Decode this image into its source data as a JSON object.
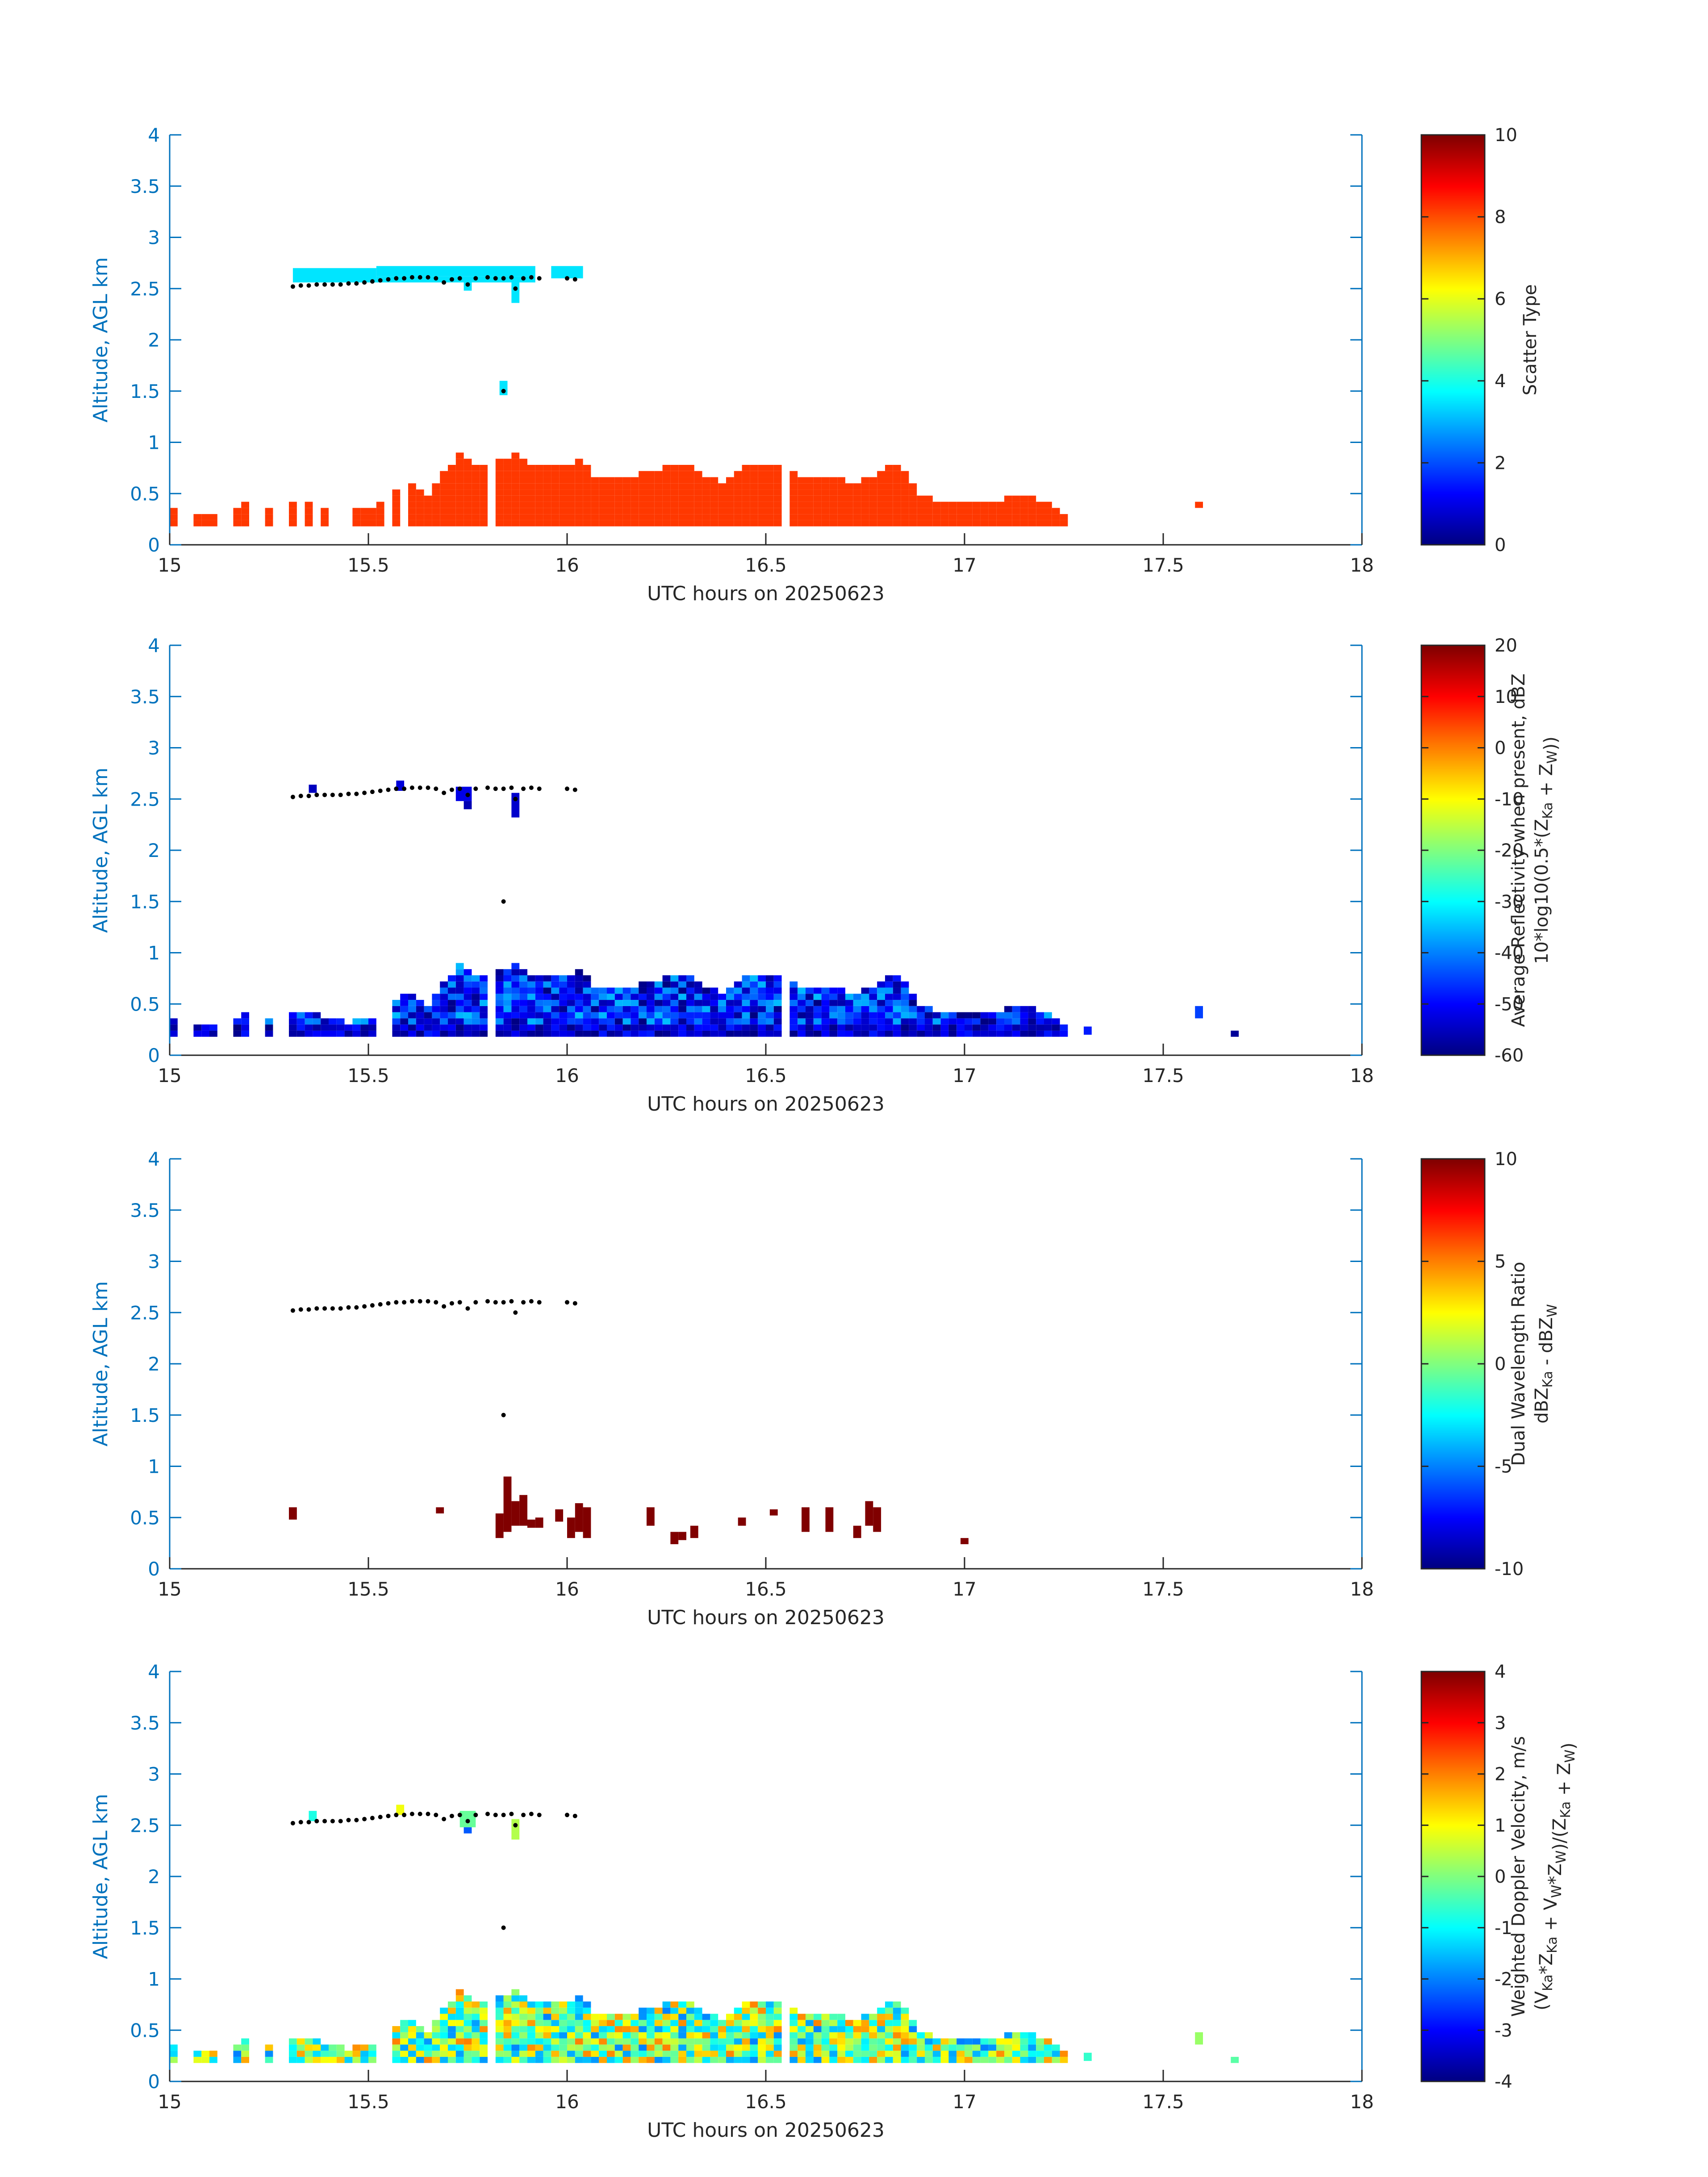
{
  "colors": {
    "axis": "#0072BD",
    "frame": "#262626",
    "text": "#262626",
    "cloud_top_dot": "#000000",
    "background": "#ffffff"
  },
  "colormap": "jet",
  "chart_data": [
    {
      "type": "heatmap",
      "title": "",
      "xlabel": "UTC hours on 20250623",
      "ylabel": "Altitude, AGL km",
      "xlim": [
        15,
        18
      ],
      "ylim": [
        0,
        4
      ],
      "xticks": [
        "15",
        "15.5",
        "16",
        "16.5",
        "17",
        "17.5",
        "18"
      ],
      "yticks": [
        "0",
        "0.5",
        "1",
        "1.5",
        "2",
        "2.5",
        "3",
        "3.5",
        "4"
      ],
      "colorbar": {
        "label_lines": [
          "Scatter Type"
        ],
        "clim": [
          0,
          10
        ],
        "ticks": [
          "0",
          "2",
          "4",
          "6",
          "8",
          "10"
        ]
      },
      "cloud_top_points": [
        [
          15.31,
          2.52
        ],
        [
          15.33,
          2.53
        ],
        [
          15.35,
          2.53
        ],
        [
          15.37,
          2.54
        ],
        [
          15.39,
          2.54
        ],
        [
          15.41,
          2.54
        ],
        [
          15.43,
          2.54
        ],
        [
          15.45,
          2.55
        ],
        [
          15.47,
          2.55
        ],
        [
          15.49,
          2.56
        ],
        [
          15.51,
          2.57
        ],
        [
          15.53,
          2.58
        ],
        [
          15.55,
          2.59
        ],
        [
          15.57,
          2.6
        ],
        [
          15.59,
          2.6
        ],
        [
          15.61,
          2.61
        ],
        [
          15.63,
          2.61
        ],
        [
          15.65,
          2.61
        ],
        [
          15.67,
          2.6
        ],
        [
          15.69,
          2.56
        ],
        [
          15.71,
          2.59
        ],
        [
          15.73,
          2.6
        ],
        [
          15.75,
          2.54
        ],
        [
          15.77,
          2.6
        ],
        [
          15.8,
          2.61
        ],
        [
          15.82,
          2.6
        ],
        [
          15.84,
          2.6
        ],
        [
          15.86,
          2.61
        ],
        [
          15.87,
          2.5
        ],
        [
          15.89,
          2.6
        ],
        [
          15.91,
          2.61
        ],
        [
          15.93,
          2.6
        ],
        [
          16,
          2.6
        ],
        [
          16.02,
          2.59
        ],
        [
          15.84,
          1.5
        ]
      ],
      "high_cloud_cells": [
        {
          "x0": 15.31,
          "x1": 15.52,
          "y0": 2.56,
          "y1": 2.7,
          "value": 3.5
        },
        {
          "x0": 15.52,
          "x1": 15.92,
          "y0": 2.62,
          "y1": 2.72,
          "value": 3.5
        },
        {
          "x0": 15.52,
          "x1": 15.92,
          "y0": 2.56,
          "y1": 2.62,
          "value": 3.5
        },
        {
          "x0": 15.74,
          "x1": 15.76,
          "y0": 2.48,
          "y1": 2.56,
          "value": 3.5
        },
        {
          "x0": 15.86,
          "x1": 15.88,
          "y0": 2.36,
          "y1": 2.56,
          "value": 3.5
        },
        {
          "x0": 15.96,
          "x1": 16.04,
          "y0": 2.6,
          "y1": 2.72,
          "value": 3.5
        },
        {
          "x0": 15.83,
          "x1": 15.85,
          "y0": 1.46,
          "y1": 1.6,
          "value": 3.5
        }
      ],
      "low_cloud_profile": {
        "value": 8.2,
        "sparse_until": 15.6
      },
      "extra_cells": [
        {
          "x0": 17.58,
          "x1": 17.6,
          "y0": 0.36,
          "y1": 0.42,
          "value": 8.2
        }
      ]
    },
    {
      "type": "heatmap",
      "title": "",
      "xlabel": "UTC hours on 20250623",
      "ylabel": "Altitude, AGL km",
      "xlim": [
        15,
        18
      ],
      "ylim": [
        0,
        4
      ],
      "xticks": [
        "15",
        "15.5",
        "16",
        "16.5",
        "17",
        "17.5",
        "18"
      ],
      "yticks": [
        "0",
        "0.5",
        "1",
        "1.5",
        "2",
        "2.5",
        "3",
        "3.5",
        "4"
      ],
      "colorbar": {
        "label_lines": [
          "Average Reflectivity when present, dBZ",
          "10*log10(0.5*(Z_Ka + Z_W))"
        ],
        "clim": [
          -60,
          20
        ],
        "ticks": [
          "-60",
          "-50",
          "-40",
          "-30",
          "-20",
          "-10",
          "0",
          "10",
          "20"
        ]
      },
      "cloud_top_points": [
        [
          15.31,
          2.52
        ],
        [
          15.33,
          2.53
        ],
        [
          15.35,
          2.53
        ],
        [
          15.37,
          2.54
        ],
        [
          15.39,
          2.54
        ],
        [
          15.41,
          2.54
        ],
        [
          15.43,
          2.54
        ],
        [
          15.45,
          2.55
        ],
        [
          15.47,
          2.55
        ],
        [
          15.49,
          2.56
        ],
        [
          15.51,
          2.57
        ],
        [
          15.53,
          2.58
        ],
        [
          15.55,
          2.59
        ],
        [
          15.57,
          2.6
        ],
        [
          15.59,
          2.6
        ],
        [
          15.61,
          2.61
        ],
        [
          15.63,
          2.61
        ],
        [
          15.65,
          2.61
        ],
        [
          15.67,
          2.6
        ],
        [
          15.69,
          2.56
        ],
        [
          15.71,
          2.59
        ],
        [
          15.73,
          2.6
        ],
        [
          15.75,
          2.54
        ],
        [
          15.77,
          2.6
        ],
        [
          15.8,
          2.61
        ],
        [
          15.82,
          2.6
        ],
        [
          15.84,
          2.6
        ],
        [
          15.86,
          2.61
        ],
        [
          15.87,
          2.5
        ],
        [
          15.89,
          2.6
        ],
        [
          15.91,
          2.61
        ],
        [
          15.93,
          2.6
        ],
        [
          16,
          2.6
        ],
        [
          16.02,
          2.59
        ],
        [
          15.84,
          1.5
        ]
      ],
      "high_cloud_cells": [
        {
          "x0": 15.35,
          "x1": 15.37,
          "y0": 2.56,
          "y1": 2.64,
          "value": -55
        },
        {
          "x0": 15.57,
          "x1": 15.59,
          "y0": 2.58,
          "y1": 2.68,
          "value": -53
        },
        {
          "x0": 15.72,
          "x1": 15.76,
          "y0": 2.48,
          "y1": 2.62,
          "value": -52
        },
        {
          "x0": 15.74,
          "x1": 15.76,
          "y0": 2.4,
          "y1": 2.48,
          "value": -56
        },
        {
          "x0": 15.86,
          "x1": 15.88,
          "y0": 2.32,
          "y1": 2.56,
          "value": -54
        }
      ],
      "low_cloud_profile": {
        "value": "mixed",
        "range": [
          -60,
          -35
        ]
      },
      "extra_cells": [
        {
          "x0": 17.3,
          "x1": 17.32,
          "y0": 0.2,
          "y1": 0.28,
          "value": -48
        },
        {
          "x0": 17.58,
          "x1": 17.6,
          "y0": 0.36,
          "y1": 0.48,
          "value": -45
        },
        {
          "x0": 17.67,
          "x1": 17.69,
          "y0": 0.18,
          "y1": 0.24,
          "value": -58
        }
      ]
    },
    {
      "type": "heatmap",
      "title": "",
      "xlabel": "UTC hours on 20250623",
      "ylabel": "Altitude, AGL km",
      "xlim": [
        15,
        18
      ],
      "ylim": [
        0,
        4
      ],
      "xticks": [
        "15",
        "15.5",
        "16",
        "16.5",
        "17",
        "17.5",
        "18"
      ],
      "yticks": [
        "0",
        "0.5",
        "1",
        "1.5",
        "2",
        "2.5",
        "3",
        "3.5",
        "4"
      ],
      "colorbar": {
        "label_lines": [
          "Dual Wavelength Ratio",
          "dBZ_Ka - dBZ_W"
        ],
        "clim": [
          -10,
          10
        ],
        "ticks": [
          "-10",
          "-5",
          "0",
          "5",
          "10"
        ]
      },
      "cloud_top_points": [
        [
          15.31,
          2.52
        ],
        [
          15.33,
          2.53
        ],
        [
          15.35,
          2.53
        ],
        [
          15.37,
          2.54
        ],
        [
          15.39,
          2.54
        ],
        [
          15.41,
          2.54
        ],
        [
          15.43,
          2.54
        ],
        [
          15.45,
          2.55
        ],
        [
          15.47,
          2.55
        ],
        [
          15.49,
          2.56
        ],
        [
          15.51,
          2.57
        ],
        [
          15.53,
          2.58
        ],
        [
          15.55,
          2.59
        ],
        [
          15.57,
          2.6
        ],
        [
          15.59,
          2.6
        ],
        [
          15.61,
          2.61
        ],
        [
          15.63,
          2.61
        ],
        [
          15.65,
          2.61
        ],
        [
          15.67,
          2.6
        ],
        [
          15.69,
          2.56
        ],
        [
          15.71,
          2.59
        ],
        [
          15.73,
          2.6
        ],
        [
          15.75,
          2.54
        ],
        [
          15.77,
          2.6
        ],
        [
          15.8,
          2.61
        ],
        [
          15.82,
          2.6
        ],
        [
          15.84,
          2.6
        ],
        [
          15.86,
          2.61
        ],
        [
          15.87,
          2.5
        ],
        [
          15.89,
          2.6
        ],
        [
          15.91,
          2.61
        ],
        [
          15.93,
          2.6
        ],
        [
          16,
          2.6
        ],
        [
          16.02,
          2.59
        ],
        [
          15.84,
          1.5
        ]
      ],
      "high_cloud_cells": [],
      "dwr_cells": [
        {
          "x0": 15.3,
          "x1": 15.32,
          "y0": 0.48,
          "y1": 0.6,
          "value": 10
        },
        {
          "x0": 15.67,
          "x1": 15.69,
          "y0": 0.54,
          "y1": 0.6,
          "value": 10
        },
        {
          "x0": 15.82,
          "x1": 15.84,
          "y0": 0.3,
          "y1": 0.54,
          "value": 10
        },
        {
          "x0": 15.84,
          "x1": 15.86,
          "y0": 0.36,
          "y1": 0.9,
          "value": 10
        },
        {
          "x0": 15.86,
          "x1": 15.88,
          "y0": 0.42,
          "y1": 0.66,
          "value": 10
        },
        {
          "x0": 15.88,
          "x1": 15.9,
          "y0": 0.42,
          "y1": 0.72,
          "value": 10
        },
        {
          "x0": 15.9,
          "x1": 15.92,
          "y0": 0.4,
          "y1": 0.48,
          "value": 10
        },
        {
          "x0": 15.92,
          "x1": 15.94,
          "y0": 0.4,
          "y1": 0.5,
          "value": 10
        },
        {
          "x0": 15.97,
          "x1": 15.99,
          "y0": 0.46,
          "y1": 0.58,
          "value": 10
        },
        {
          "x0": 16,
          "x1": 16.02,
          "y0": 0.3,
          "y1": 0.5,
          "value": 10
        },
        {
          "x0": 16.02,
          "x1": 16.04,
          "y0": 0.36,
          "y1": 0.64,
          "value": 10
        },
        {
          "x0": 16.04,
          "x1": 16.06,
          "y0": 0.3,
          "y1": 0.6,
          "value": 10
        },
        {
          "x0": 16.2,
          "x1": 16.22,
          "y0": 0.42,
          "y1": 0.6,
          "value": 10
        },
        {
          "x0": 16.26,
          "x1": 16.28,
          "y0": 0.24,
          "y1": 0.36,
          "value": 10
        },
        {
          "x0": 16.28,
          "x1": 16.3,
          "y0": 0.28,
          "y1": 0.36,
          "value": 10
        },
        {
          "x0": 16.31,
          "x1": 16.33,
          "y0": 0.3,
          "y1": 0.42,
          "value": 10
        },
        {
          "x0": 16.43,
          "x1": 16.45,
          "y0": 0.42,
          "y1": 0.5,
          "value": 10
        },
        {
          "x0": 16.51,
          "x1": 16.53,
          "y0": 0.52,
          "y1": 0.58,
          "value": 10
        },
        {
          "x0": 16.59,
          "x1": 16.61,
          "y0": 0.36,
          "y1": 0.6,
          "value": 10
        },
        {
          "x0": 16.65,
          "x1": 16.67,
          "y0": 0.36,
          "y1": 0.6,
          "value": 10
        },
        {
          "x0": 16.72,
          "x1": 16.74,
          "y0": 0.3,
          "y1": 0.42,
          "value": 10
        },
        {
          "x0": 16.75,
          "x1": 16.77,
          "y0": 0.42,
          "y1": 0.66,
          "value": 10
        },
        {
          "x0": 16.77,
          "x1": 16.79,
          "y0": 0.36,
          "y1": 0.6,
          "value": 10
        },
        {
          "x0": 16.99,
          "x1": 17.01,
          "y0": 0.24,
          "y1": 0.3,
          "value": 10
        }
      ]
    },
    {
      "type": "heatmap",
      "title": "",
      "xlabel": "UTC hours on 20250623",
      "ylabel": "Altitude, AGL km",
      "xlim": [
        15,
        18
      ],
      "ylim": [
        0,
        4
      ],
      "xticks": [
        "15",
        "15.5",
        "16",
        "16.5",
        "17",
        "17.5",
        "18"
      ],
      "yticks": [
        "0",
        "0.5",
        "1",
        "1.5",
        "2",
        "2.5",
        "3",
        "3.5",
        "4"
      ],
      "colorbar": {
        "label_lines": [
          "Weighted Doppler Velocity, m/s",
          "(V_Ka*Z_Ka + V_W*Z_W)/(Z_Ka + Z_W)"
        ],
        "clim": [
          -4,
          4
        ],
        "ticks": [
          "-4",
          "-3",
          "-2",
          "-1",
          "0",
          "1",
          "2",
          "3",
          "4"
        ]
      },
      "cloud_top_points": [
        [
          15.31,
          2.52
        ],
        [
          15.33,
          2.53
        ],
        [
          15.35,
          2.53
        ],
        [
          15.37,
          2.54
        ],
        [
          15.39,
          2.54
        ],
        [
          15.41,
          2.54
        ],
        [
          15.43,
          2.54
        ],
        [
          15.45,
          2.55
        ],
        [
          15.47,
          2.55
        ],
        [
          15.49,
          2.56
        ],
        [
          15.51,
          2.57
        ],
        [
          15.53,
          2.58
        ],
        [
          15.55,
          2.59
        ],
        [
          15.57,
          2.6
        ],
        [
          15.59,
          2.6
        ],
        [
          15.61,
          2.61
        ],
        [
          15.63,
          2.61
        ],
        [
          15.65,
          2.61
        ],
        [
          15.67,
          2.6
        ],
        [
          15.69,
          2.56
        ],
        [
          15.71,
          2.59
        ],
        [
          15.73,
          2.6
        ],
        [
          15.75,
          2.54
        ],
        [
          15.77,
          2.6
        ],
        [
          15.8,
          2.61
        ],
        [
          15.82,
          2.6
        ],
        [
          15.84,
          2.6
        ],
        [
          15.86,
          2.61
        ],
        [
          15.87,
          2.5
        ],
        [
          15.89,
          2.6
        ],
        [
          15.91,
          2.61
        ],
        [
          15.93,
          2.6
        ],
        [
          16,
          2.6
        ],
        [
          16.02,
          2.59
        ],
        [
          15.84,
          1.5
        ]
      ],
      "high_cloud_cells": [
        {
          "x0": 15.35,
          "x1": 15.37,
          "y0": 2.54,
          "y1": 2.64,
          "value": -0.8
        },
        {
          "x0": 15.57,
          "x1": 15.59,
          "y0": 2.6,
          "y1": 2.7,
          "value": 0.9
        },
        {
          "x0": 15.73,
          "x1": 15.77,
          "y0": 2.48,
          "y1": 2.64,
          "value": -0.2
        },
        {
          "x0": 15.74,
          "x1": 15.76,
          "y0": 2.42,
          "y1": 2.48,
          "value": -2.3
        },
        {
          "x0": 15.86,
          "x1": 15.88,
          "y0": 2.36,
          "y1": 2.56,
          "value": 0.4
        }
      ],
      "low_cloud_profile": {
        "value": "mixed",
        "range": [
          -2,
          2
        ]
      },
      "extra_cells": [
        {
          "x0": 17.3,
          "x1": 17.32,
          "y0": 0.2,
          "y1": 0.28,
          "value": -0.6
        },
        {
          "x0": 17.58,
          "x1": 17.6,
          "y0": 0.36,
          "y1": 0.48,
          "value": 0.2
        },
        {
          "x0": 17.67,
          "x1": 17.69,
          "y0": 0.18,
          "y1": 0.24,
          "value": -0.3
        }
      ]
    }
  ]
}
